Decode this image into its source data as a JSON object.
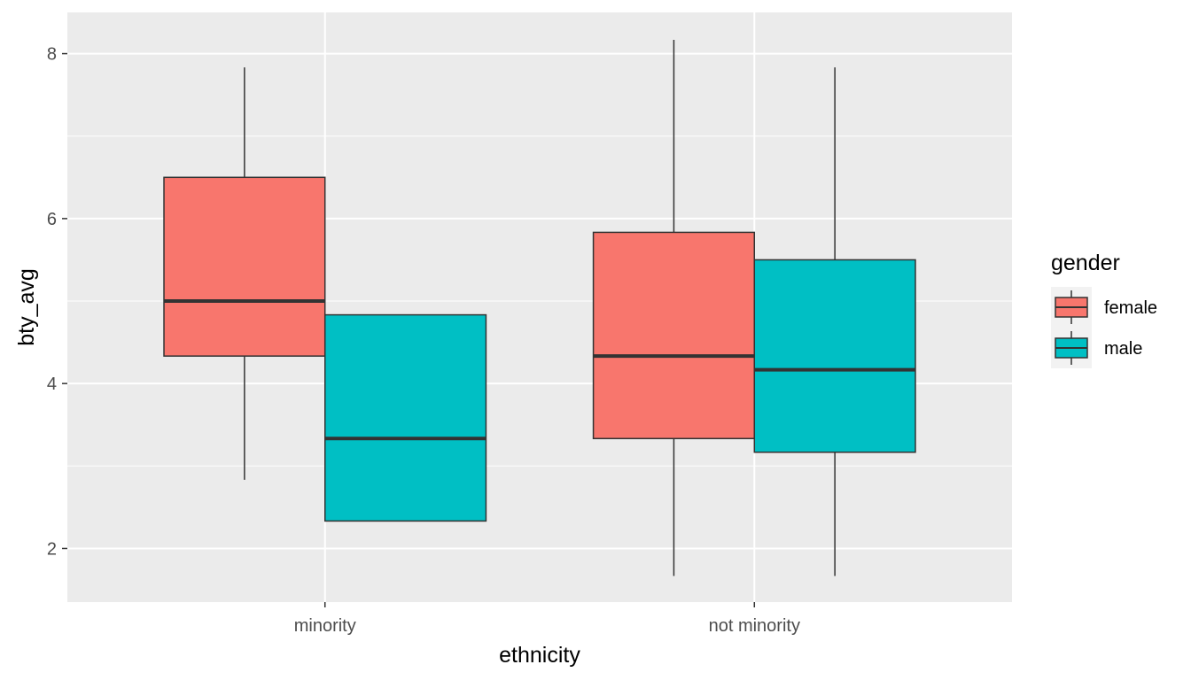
{
  "chart_data": {
    "type": "boxplot",
    "categories": [
      "minority",
      "not minority"
    ],
    "xlabel": "ethnicity",
    "ylabel": "bty_avg",
    "ylim": [
      1.35,
      8.5
    ],
    "yticks": [
      2,
      4,
      6,
      8
    ],
    "grid": true,
    "legend": {
      "title": "gender",
      "position": "right"
    },
    "series": [
      {
        "name": "female",
        "color": "#F8766D",
        "boxes": [
          {
            "category": "minority",
            "min": 2.833,
            "q1": 4.333,
            "median": 5.0,
            "q3": 6.5,
            "max": 7.833
          },
          {
            "category": "not minority",
            "min": 1.667,
            "q1": 3.333,
            "median": 4.333,
            "q3": 5.833,
            "max": 8.167
          }
        ]
      },
      {
        "name": "male",
        "color": "#00BFC4",
        "boxes": [
          {
            "category": "minority",
            "min": 2.333,
            "q1": 2.333,
            "median": 3.333,
            "q3": 4.833,
            "max": 4.833
          },
          {
            "category": "not minority",
            "min": 1.667,
            "q1": 3.167,
            "median": 4.167,
            "q3": 5.5,
            "max": 7.833
          }
        ]
      }
    ]
  }
}
